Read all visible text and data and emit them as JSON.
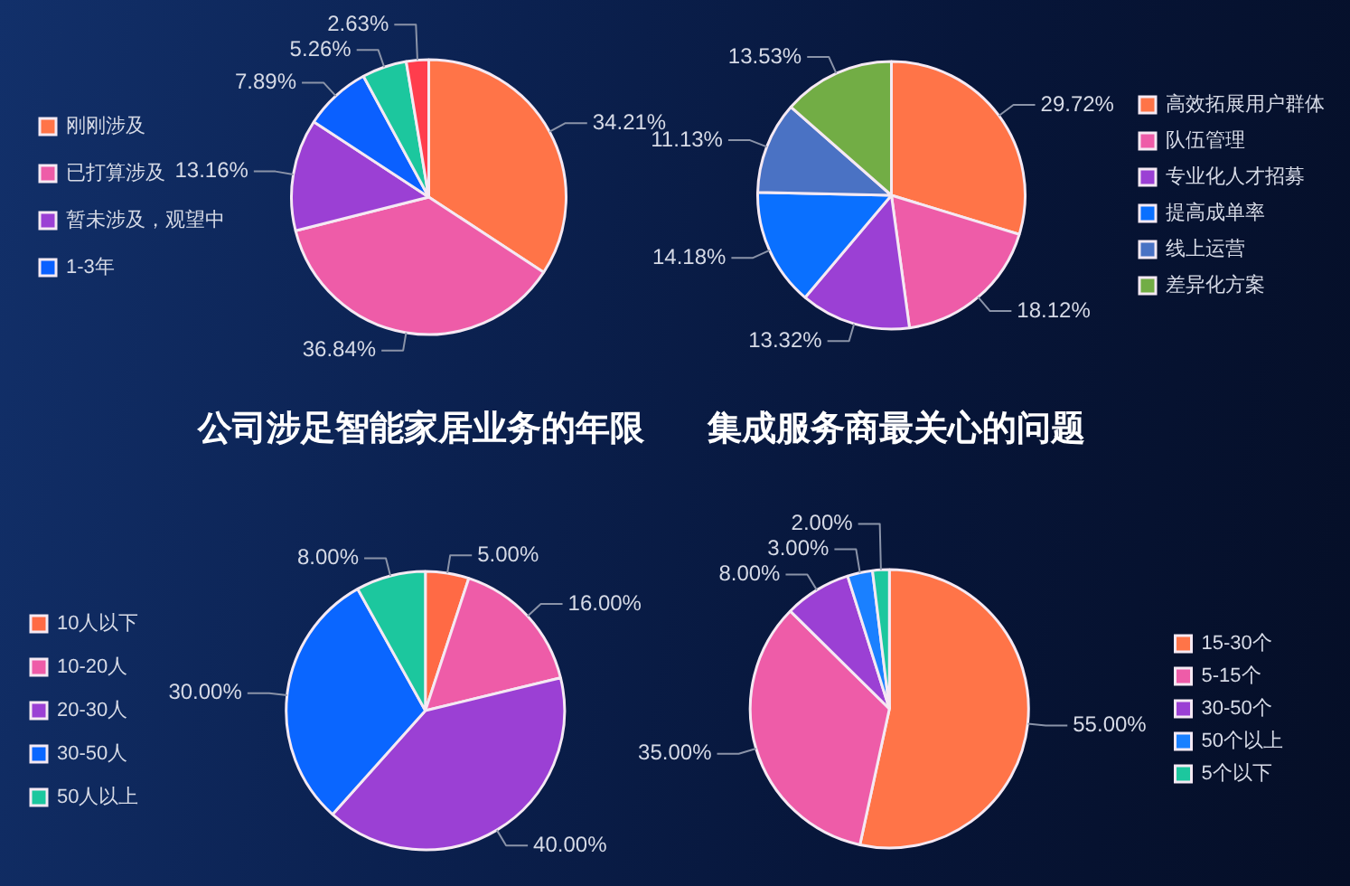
{
  "chart_data": [
    {
      "type": "pie",
      "title": "公司涉足智能家居业务的年限",
      "categories": [
        "刚刚涉及",
        "已打算涉及",
        "暂未涉及，观望中",
        "1-3年",
        null,
        null
      ],
      "values": [
        34.21,
        36.84,
        13.16,
        7.89,
        5.26,
        2.63
      ],
      "value_labels": [
        "34.21%",
        "36.84%",
        "13.16%",
        "7.89%",
        "5.26%",
        "2.63%"
      ],
      "colors": [
        "#ff7448",
        "#ee5ca8",
        "#9b40d4",
        "#0a60ff",
        "#1cc79e",
        "#ff3d4d"
      ],
      "legend": "left"
    },
    {
      "type": "pie",
      "title": "集成服务商最关心的问题",
      "categories": [
        "高效拓展用户群体",
        "队伍管理",
        "专业化人才招募",
        "提高成单率",
        "线上运营",
        "差异化方案"
      ],
      "values": [
        29.72,
        18.12,
        13.32,
        14.18,
        11.13,
        13.53
      ],
      "value_labels": [
        "29.72%",
        "18.12%",
        "13.32%",
        "14.18%",
        "11.13%",
        "13.53%"
      ],
      "colors": [
        "#ff7448",
        "#ee5ca8",
        "#9b40d4",
        "#0a70ff",
        "#4a72c4",
        "#72ad45"
      ],
      "legend": "right"
    },
    {
      "type": "pie",
      "categories": [
        "10人以下",
        "10-20人",
        "20-30人",
        "30-50人",
        "50人以上"
      ],
      "values": [
        5.0,
        16.0,
        40.0,
        30.0,
        8.0
      ],
      "value_labels": [
        "5.00%",
        "16.00%",
        "40.00%",
        "30.00%",
        "8.00%"
      ],
      "colors": [
        "#ff6a45",
        "#ee5ca8",
        "#9b40d4",
        "#0a66ff",
        "#1cc79e"
      ],
      "legend": "left"
    },
    {
      "type": "pie",
      "categories": [
        "15-30个",
        "5-15个",
        "30-50个",
        "50个以上",
        "5个以下"
      ],
      "values": [
        55.0,
        35.0,
        8.0,
        3.0,
        2.0
      ],
      "value_labels": [
        "55.00%",
        "35.00%",
        "8.00%",
        "3.00%",
        "2.00%"
      ],
      "colors": [
        "#ff7448",
        "#ee5ca8",
        "#9b40d4",
        "#1a80ff",
        "#1cc79e"
      ],
      "legend": "right"
    }
  ]
}
